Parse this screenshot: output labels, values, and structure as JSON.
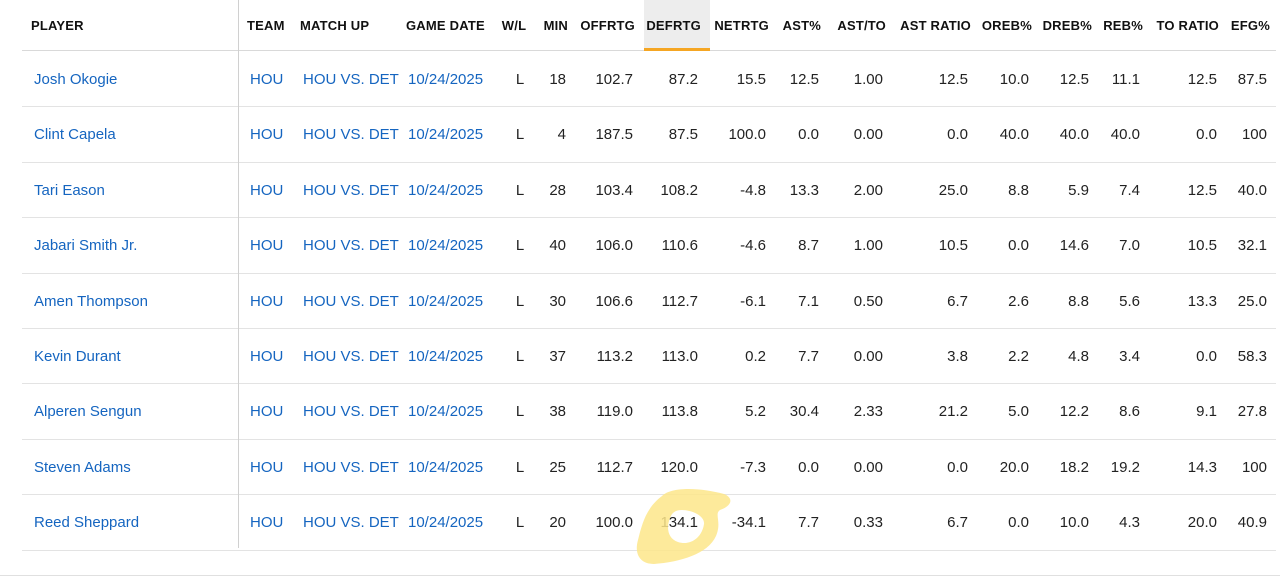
{
  "columns": {
    "player": "PLAYER",
    "team": "TEAM",
    "matchup": "MATCH UP",
    "game_date": "GAME DATE",
    "wl": "W/L",
    "min": "MIN",
    "offrtg": "OFFRTG",
    "defrtg": "DEFRTG",
    "netrtg": "NETRTG",
    "ast_pct": "AST%",
    "ast_to": "AST/TO",
    "ast_ratio": "AST RATIO",
    "oreb_pct": "OREB%",
    "dreb_pct": "DREB%",
    "reb_pct": "REB%",
    "to_ratio": "TO RATIO",
    "efg_pct": "EFG%"
  },
  "sorted_column": "DEFRTG",
  "accent_color": "#f5a623",
  "highlight_color": "#fde68a",
  "rows": [
    {
      "player": "Josh Okogie",
      "team": "HOU",
      "matchup": "HOU VS. DET",
      "date": "10/24/2025",
      "wl": "L",
      "min": "18",
      "offrtg": "102.7",
      "defrtg": "87.2",
      "netrtg": "15.5",
      "ast_pct": "12.5",
      "ast_to": "1.00",
      "ast_ratio": "12.5",
      "oreb_pct": "10.0",
      "dreb_pct": "12.5",
      "reb_pct": "11.1",
      "to_ratio": "12.5",
      "efg_pct": "87.5"
    },
    {
      "player": "Clint Capela",
      "team": "HOU",
      "matchup": "HOU VS. DET",
      "date": "10/24/2025",
      "wl": "L",
      "min": "4",
      "offrtg": "187.5",
      "defrtg": "87.5",
      "netrtg": "100.0",
      "ast_pct": "0.0",
      "ast_to": "0.00",
      "ast_ratio": "0.0",
      "oreb_pct": "40.0",
      "dreb_pct": "40.0",
      "reb_pct": "40.0",
      "to_ratio": "0.0",
      "efg_pct": "100"
    },
    {
      "player": "Tari Eason",
      "team": "HOU",
      "matchup": "HOU VS. DET",
      "date": "10/24/2025",
      "wl": "L",
      "min": "28",
      "offrtg": "103.4",
      "defrtg": "108.2",
      "netrtg": "-4.8",
      "ast_pct": "13.3",
      "ast_to": "2.00",
      "ast_ratio": "25.0",
      "oreb_pct": "8.8",
      "dreb_pct": "5.9",
      "reb_pct": "7.4",
      "to_ratio": "12.5",
      "efg_pct": "40.0"
    },
    {
      "player": "Jabari Smith Jr.",
      "team": "HOU",
      "matchup": "HOU VS. DET",
      "date": "10/24/2025",
      "wl": "L",
      "min": "40",
      "offrtg": "106.0",
      "defrtg": "110.6",
      "netrtg": "-4.6",
      "ast_pct": "8.7",
      "ast_to": "1.00",
      "ast_ratio": "10.5",
      "oreb_pct": "0.0",
      "dreb_pct": "14.6",
      "reb_pct": "7.0",
      "to_ratio": "10.5",
      "efg_pct": "32.1"
    },
    {
      "player": "Amen Thompson",
      "team": "HOU",
      "matchup": "HOU VS. DET",
      "date": "10/24/2025",
      "wl": "L",
      "min": "30",
      "offrtg": "106.6",
      "defrtg": "112.7",
      "netrtg": "-6.1",
      "ast_pct": "7.1",
      "ast_to": "0.50",
      "ast_ratio": "6.7",
      "oreb_pct": "2.6",
      "dreb_pct": "8.8",
      "reb_pct": "5.6",
      "to_ratio": "13.3",
      "efg_pct": "25.0"
    },
    {
      "player": "Kevin Durant",
      "team": "HOU",
      "matchup": "HOU VS. DET",
      "date": "10/24/2025",
      "wl": "L",
      "min": "37",
      "offrtg": "113.2",
      "defrtg": "113.0",
      "netrtg": "0.2",
      "ast_pct": "7.7",
      "ast_to": "0.00",
      "ast_ratio": "3.8",
      "oreb_pct": "2.2",
      "dreb_pct": "4.8",
      "reb_pct": "3.4",
      "to_ratio": "0.0",
      "efg_pct": "58.3"
    },
    {
      "player": "Alperen Sengun",
      "team": "HOU",
      "matchup": "HOU VS. DET",
      "date": "10/24/2025",
      "wl": "L",
      "min": "38",
      "offrtg": "119.0",
      "defrtg": "113.8",
      "netrtg": "5.2",
      "ast_pct": "30.4",
      "ast_to": "2.33",
      "ast_ratio": "21.2",
      "oreb_pct": "5.0",
      "dreb_pct": "12.2",
      "reb_pct": "8.6",
      "to_ratio": "9.1",
      "efg_pct": "27.8"
    },
    {
      "player": "Steven Adams",
      "team": "HOU",
      "matchup": "HOU VS. DET",
      "date": "10/24/2025",
      "wl": "L",
      "min": "25",
      "offrtg": "112.7",
      "defrtg": "120.0",
      "netrtg": "-7.3",
      "ast_pct": "0.0",
      "ast_to": "0.00",
      "ast_ratio": "0.0",
      "oreb_pct": "20.0",
      "dreb_pct": "18.2",
      "reb_pct": "19.2",
      "to_ratio": "14.3",
      "efg_pct": "100"
    },
    {
      "player": "Reed Sheppard",
      "team": "HOU",
      "matchup": "HOU VS. DET",
      "date": "10/24/2025",
      "wl": "L",
      "min": "20",
      "offrtg": "100.0",
      "defrtg": "134.1",
      "netrtg": "-34.1",
      "ast_pct": "7.7",
      "ast_to": "0.33",
      "ast_ratio": "6.7",
      "oreb_pct": "0.0",
      "dreb_pct": "10.0",
      "reb_pct": "4.3",
      "to_ratio": "20.0",
      "efg_pct": "40.9"
    }
  ]
}
